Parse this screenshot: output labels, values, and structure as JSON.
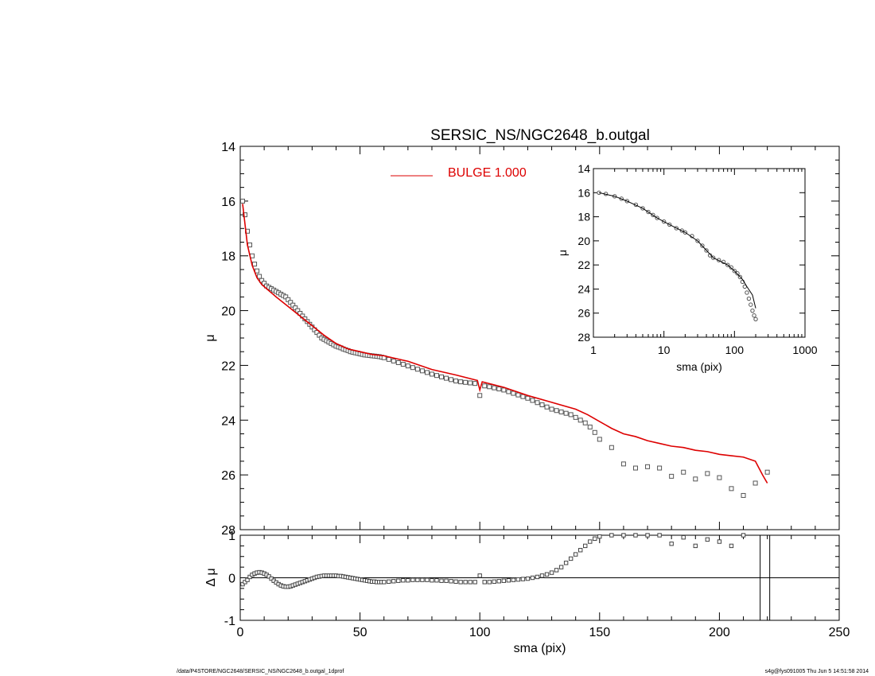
{
  "chart_data": [
    {
      "id": "main",
      "type": "scatter",
      "title": "SERSIC_NS/NGC2648_b.outgal",
      "xlabel": "",
      "ylabel": "μ",
      "xlim": [
        0,
        250
      ],
      "ylim": [
        28,
        14
      ],
      "xticks": [
        0,
        50,
        100,
        150,
        200,
        250
      ],
      "yticks": [
        14,
        16,
        18,
        20,
        22,
        24,
        26,
        28
      ],
      "legend": {
        "label": "BULGE  1.000",
        "color": "#dd0000",
        "placement": "top"
      },
      "series": [
        {
          "name": "data",
          "marker": "square",
          "x": [
            1,
            2,
            3,
            4,
            5,
            6,
            7,
            8,
            9,
            10,
            11,
            12,
            13,
            14,
            15,
            16,
            17,
            18,
            19,
            20,
            21,
            22,
            23,
            24,
            25,
            26,
            27,
            28,
            29,
            30,
            31,
            32,
            33,
            34,
            35,
            36,
            37,
            38,
            39,
            40,
            41,
            42,
            43,
            44,
            45,
            46,
            47,
            48,
            49,
            50,
            51,
            52,
            53,
            54,
            55,
            56,
            57,
            58,
            59,
            60,
            62,
            64,
            66,
            68,
            70,
            72,
            74,
            76,
            78,
            80,
            82,
            84,
            86,
            88,
            90,
            92,
            94,
            96,
            98,
            100,
            102,
            104,
            106,
            108,
            110,
            112,
            114,
            116,
            118,
            120,
            122,
            124,
            126,
            128,
            130,
            132,
            134,
            136,
            138,
            140,
            142,
            144,
            146,
            148,
            150,
            155,
            160,
            165,
            170,
            175,
            180,
            185,
            190,
            195,
            200,
            205,
            210,
            215,
            220
          ],
          "y": [
            16.0,
            16.5,
            17.1,
            17.6,
            18.0,
            18.3,
            18.55,
            18.75,
            18.9,
            19.0,
            19.1,
            19.15,
            19.2,
            19.25,
            19.3,
            19.35,
            19.4,
            19.45,
            19.5,
            19.6,
            19.7,
            19.8,
            19.9,
            20.0,
            20.1,
            20.2,
            20.3,
            20.4,
            20.5,
            20.6,
            20.7,
            20.8,
            20.9,
            21.0,
            21.05,
            21.1,
            21.15,
            21.2,
            21.25,
            21.3,
            21.33,
            21.36,
            21.4,
            21.43,
            21.46,
            21.5,
            21.52,
            21.54,
            21.56,
            21.58,
            21.6,
            21.62,
            21.63,
            21.64,
            21.65,
            21.66,
            21.67,
            21.68,
            21.7,
            21.72,
            21.78,
            21.84,
            21.9,
            21.96,
            22.02,
            22.08,
            22.14,
            22.2,
            22.26,
            22.32,
            22.37,
            22.42,
            22.47,
            22.52,
            22.57,
            22.6,
            22.62,
            22.64,
            22.66,
            23.1,
            22.75,
            22.78,
            22.82,
            22.86,
            22.9,
            22.96,
            23.02,
            23.08,
            23.14,
            23.2,
            23.28,
            23.36,
            23.44,
            23.52,
            23.6,
            23.65,
            23.7,
            23.75,
            23.8,
            23.9,
            24.0,
            24.1,
            24.25,
            24.45,
            24.7,
            25.0,
            25.6,
            25.75,
            25.7,
            25.75,
            26.05,
            25.9,
            26.15,
            25.95,
            26.1,
            26.5,
            26.75,
            26.3,
            25.9
          ],
          "comment_removed": true
        },
        {
          "name": "BULGE  1.000",
          "marker": "line",
          "color": "#dd0000",
          "x": [
            1,
            3,
            5,
            7,
            9,
            11,
            13,
            15,
            20,
            25,
            30,
            35,
            40,
            45,
            50,
            55,
            60,
            70,
            80,
            90,
            99,
            100,
            101,
            110,
            120,
            130,
            140,
            145,
            150,
            155,
            160,
            165,
            170,
            175,
            180,
            185,
            190,
            195,
            200,
            205,
            210,
            215,
            218,
            220
          ],
          "y": [
            16.1,
            17.6,
            18.35,
            18.8,
            19.05,
            19.2,
            19.35,
            19.5,
            19.85,
            20.2,
            20.55,
            20.9,
            21.2,
            21.4,
            21.5,
            21.6,
            21.65,
            21.85,
            22.15,
            22.35,
            22.55,
            22.9,
            22.6,
            22.8,
            23.1,
            23.35,
            23.6,
            23.8,
            24.05,
            24.3,
            24.5,
            24.6,
            24.75,
            24.85,
            24.95,
            25.0,
            25.1,
            25.15,
            25.25,
            25.3,
            25.35,
            25.5,
            26.0,
            26.3
          ]
        }
      ]
    },
    {
      "id": "inset",
      "type": "scatter",
      "title": "",
      "xlabel": "sma (pix)",
      "ylabel": "μ",
      "xscale": "log",
      "xlim": [
        1,
        1000
      ],
      "ylim": [
        28,
        14
      ],
      "xticks": [
        1,
        10,
        100,
        1000
      ],
      "xticklabels": [
        "1",
        "10",
        "100",
        "1000"
      ],
      "yticks": [
        14,
        16,
        18,
        20,
        22,
        24,
        26,
        28
      ],
      "series": [
        {
          "name": "data",
          "marker": "circle",
          "x": [
            1.2,
            1.5,
            2,
            2.5,
            3,
            4,
            5,
            6,
            7,
            8,
            10,
            12,
            15,
            18,
            20,
            25,
            30,
            35,
            40,
            45,
            50,
            60,
            70,
            80,
            90,
            100,
            110,
            120,
            130,
            140,
            150,
            160,
            170,
            180,
            190,
            200
          ],
          "y": [
            16.0,
            16.1,
            16.3,
            16.5,
            16.7,
            17.0,
            17.3,
            17.6,
            17.85,
            18.1,
            18.4,
            18.65,
            18.95,
            19.15,
            19.3,
            19.6,
            20.0,
            20.4,
            20.8,
            21.2,
            21.4,
            21.6,
            21.75,
            22.0,
            22.2,
            22.5,
            22.7,
            23.0,
            23.4,
            23.8,
            24.3,
            24.8,
            25.3,
            25.8,
            26.2,
            26.5
          ]
        },
        {
          "name": "model",
          "marker": "line",
          "color": "#000000",
          "x": [
            1.2,
            2,
            3,
            5,
            8,
            12,
            20,
            30,
            50,
            80,
            100,
            130,
            150,
            180,
            200
          ],
          "y": [
            16.0,
            16.3,
            16.7,
            17.3,
            18.1,
            18.65,
            19.3,
            20.0,
            21.4,
            22.0,
            22.5,
            23.2,
            23.8,
            24.5,
            25.6
          ]
        }
      ]
    },
    {
      "id": "residual",
      "type": "scatter",
      "title": "",
      "xlabel": "sma (pix)",
      "ylabel": "Δ μ",
      "xlim": [
        0,
        250
      ],
      "ylim": [
        -1,
        1
      ],
      "xticks": [
        0,
        50,
        100,
        150,
        200,
        250
      ],
      "yticks": [
        -1,
        0,
        1
      ],
      "zero_line": 0,
      "vlines": [
        217,
        221
      ],
      "series": [
        {
          "name": "residual",
          "marker": "square",
          "x": [
            1,
            2,
            3,
            4,
            5,
            6,
            7,
            8,
            9,
            10,
            11,
            12,
            13,
            14,
            15,
            16,
            17,
            18,
            19,
            20,
            21,
            22,
            23,
            24,
            25,
            26,
            27,
            28,
            29,
            30,
            31,
            32,
            33,
            34,
            35,
            36,
            37,
            38,
            39,
            40,
            41,
            42,
            43,
            44,
            45,
            46,
            47,
            48,
            49,
            50,
            51,
            52,
            53,
            54,
            55,
            56,
            57,
            58,
            59,
            60,
            62,
            64,
            66,
            68,
            70,
            72,
            74,
            76,
            78,
            80,
            82,
            84,
            86,
            88,
            90,
            92,
            94,
            96,
            98,
            100,
            102,
            104,
            106,
            108,
            110,
            112,
            114,
            116,
            118,
            120,
            122,
            124,
            126,
            128,
            130,
            132,
            134,
            136,
            138,
            140,
            142,
            144,
            146,
            148,
            150,
            155,
            160,
            165,
            170,
            175,
            180,
            185,
            190,
            195,
            200,
            205,
            210
          ],
          "y": [
            -0.15,
            -0.1,
            -0.05,
            0.02,
            0.07,
            0.1,
            0.12,
            0.13,
            0.12,
            0.1,
            0.07,
            0.03,
            -0.02,
            -0.07,
            -0.11,
            -0.15,
            -0.18,
            -0.2,
            -0.21,
            -0.21,
            -0.2,
            -0.18,
            -0.16,
            -0.14,
            -0.12,
            -0.1,
            -0.08,
            -0.06,
            -0.04,
            -0.02,
            0.0,
            0.02,
            0.03,
            0.04,
            0.05,
            0.05,
            0.05,
            0.05,
            0.05,
            0.05,
            0.04,
            0.04,
            0.03,
            0.02,
            0.01,
            0.0,
            -0.01,
            -0.02,
            -0.03,
            -0.04,
            -0.05,
            -0.06,
            -0.07,
            -0.08,
            -0.09,
            -0.09,
            -0.1,
            -0.1,
            -0.1,
            -0.1,
            -0.09,
            -0.08,
            -0.07,
            -0.06,
            -0.06,
            -0.05,
            -0.05,
            -0.05,
            -0.05,
            -0.06,
            -0.06,
            -0.07,
            -0.07,
            -0.08,
            -0.09,
            -0.1,
            -0.1,
            -0.1,
            -0.1,
            0.05,
            -0.1,
            -0.1,
            -0.09,
            -0.08,
            -0.07,
            -0.06,
            -0.05,
            -0.04,
            -0.03,
            -0.02,
            0.0,
            0.02,
            0.05,
            0.08,
            0.12,
            0.18,
            0.25,
            0.35,
            0.45,
            0.55,
            0.65,
            0.75,
            0.85,
            0.92,
            0.97,
            1.0,
            1.0,
            1.0,
            1.0,
            1.0,
            0.8,
            0.95,
            0.75,
            0.9,
            0.85,
            0.75,
            1.0
          ]
        }
      ]
    }
  ],
  "footer": {
    "left": "/data/P4STORE/NGC2648/SERSIC_NS/NGC2648_b.outgal_1dprof",
    "right": "s4g@fys091005  Thu Jun  5 14:51:58 2014"
  }
}
